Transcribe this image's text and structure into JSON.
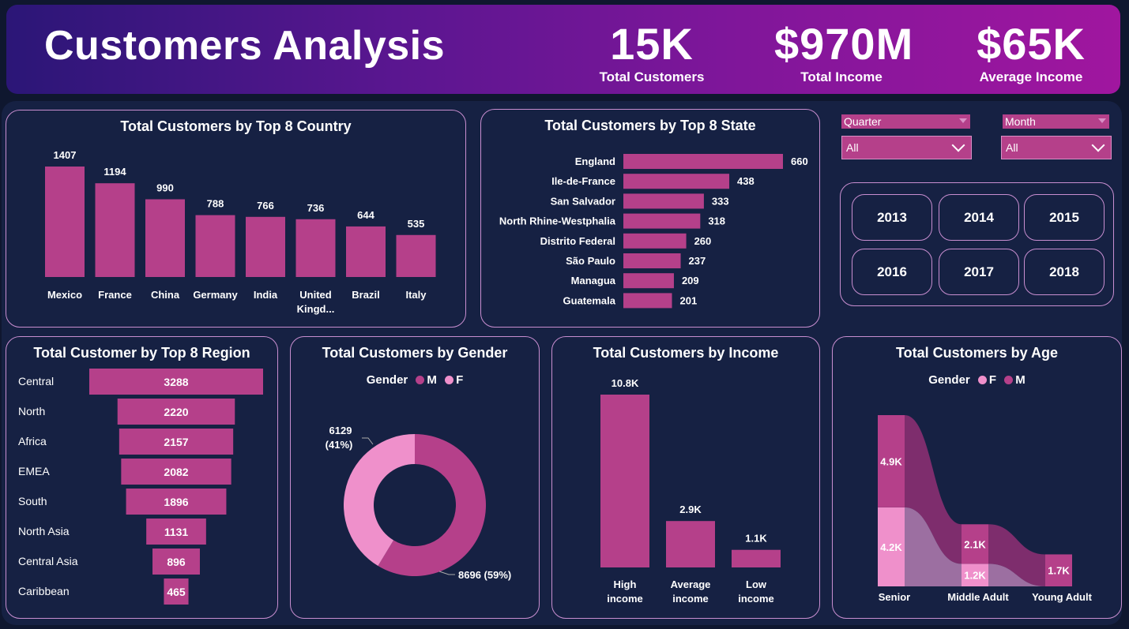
{
  "header": {
    "title": "Customers Analysis",
    "kpis": [
      {
        "value": "15K",
        "label": "Total Customers"
      },
      {
        "value": "$970M",
        "label": "Total Income"
      },
      {
        "value": "$65K",
        "label": "Average Income"
      }
    ]
  },
  "colors": {
    "primary": "#b5408a",
    "light": "#ef90cb",
    "panel_bg": "#162143",
    "border": "#c88ed0",
    "page_bg": "#0f172f"
  },
  "filters": {
    "quarter": {
      "label": "Quarter",
      "value": "All"
    },
    "month": {
      "label": "Month",
      "value": "All"
    },
    "years": [
      "2013",
      "2014",
      "2015",
      "2016",
      "2017",
      "2018"
    ]
  },
  "chart_data": [
    {
      "id": "country",
      "type": "bar",
      "title": "Total Customers by Top 8 Country",
      "categories": [
        "Mexico",
        "France",
        "China",
        "Germany",
        "India",
        "United Kingd...",
        "Brazil",
        "Italy"
      ],
      "values": [
        1407,
        1194,
        990,
        788,
        766,
        736,
        644,
        535
      ],
      "ylim": [
        0,
        1407
      ]
    },
    {
      "id": "state",
      "type": "bar",
      "orientation": "horizontal",
      "title": "Total Customers by Top 8 State",
      "categories": [
        "England",
        "Ile-de-France",
        "San Salvador",
        "North Rhine-Westphalia",
        "Distrito Federal",
        "São Paulo",
        "Managua",
        "Guatemala"
      ],
      "values": [
        660,
        438,
        333,
        318,
        260,
        237,
        209,
        201
      ]
    },
    {
      "id": "region",
      "type": "bar",
      "orientation": "funnel",
      "title": "Total Customer by Top 8 Region",
      "categories": [
        "Central",
        "North",
        "Africa",
        "EMEA",
        "South",
        "North Asia",
        "Central Asia",
        "Caribbean"
      ],
      "values": [
        3288,
        2220,
        2157,
        2082,
        1896,
        1131,
        896,
        465
      ]
    },
    {
      "id": "gender",
      "type": "pie",
      "title": "Total Customers by Gender",
      "legend_title": "Gender",
      "legend_position": "top",
      "series": [
        {
          "name": "M",
          "value": 8696,
          "label": "8696 (59%)"
        },
        {
          "name": "F",
          "value": 6129,
          "label": "6129",
          "pct_label": "(41%)"
        }
      ]
    },
    {
      "id": "income",
      "type": "bar",
      "title": "Total Customers by Income",
      "categories": [
        "High income",
        "Average income",
        "Low income"
      ],
      "categories_lines": [
        [
          "High",
          "income"
        ],
        [
          "Average",
          "income"
        ],
        [
          "Low",
          "income"
        ]
      ],
      "values": [
        10800,
        2900,
        1100
      ],
      "labels": [
        "10.8K",
        "2.9K",
        "1.1K"
      ]
    },
    {
      "id": "age",
      "type": "bar",
      "stacked": true,
      "title": "Total Customers by Age",
      "legend_title": "Gender",
      "legend_position": "top",
      "categories": [
        "Senior",
        "Middle Adult",
        "Young Adult"
      ],
      "series": [
        {
          "name": "F",
          "values": [
            4200,
            1200,
            0
          ],
          "labels": [
            "4.2K",
            "1.2K",
            ""
          ]
        },
        {
          "name": "M",
          "values": [
            4900,
            2100,
            1700
          ],
          "labels": [
            "4.9K",
            "2.1K",
            "1.7K"
          ]
        }
      ]
    }
  ]
}
